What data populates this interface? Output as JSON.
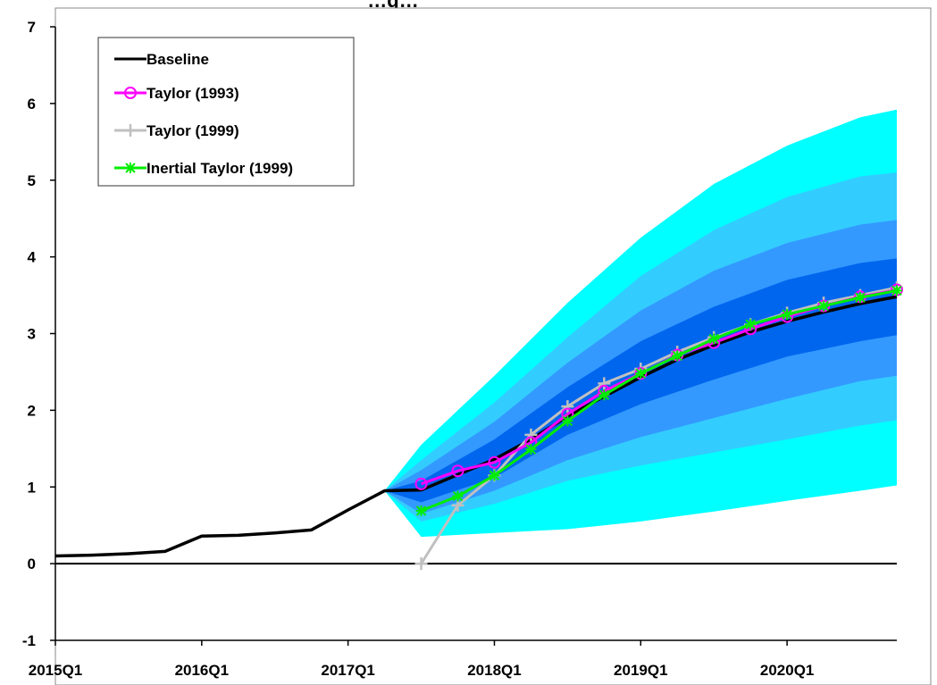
{
  "chart_data": {
    "type": "line",
    "title": "…g…",
    "x_tick_labels": [
      "2015Q1",
      "2016Q1",
      "2017Q1",
      "2018Q1",
      "2019Q1",
      "2020Q1"
    ],
    "x_tick_positions": [
      0,
      4,
      8,
      12,
      16,
      20
    ],
    "xlim": [
      0,
      23
    ],
    "ylim": [
      -1,
      7
    ],
    "y_ticks": [
      -1,
      0,
      1,
      2,
      3,
      4,
      5,
      6,
      7
    ],
    "legend_placement": "top-left",
    "fan_chart": {
      "x": [
        9,
        10,
        12,
        14,
        16,
        18,
        20,
        22,
        23
      ],
      "bands": [
        {
          "color": "#00ffff",
          "lower": [
            0.95,
            0.35,
            0.4,
            0.45,
            0.55,
            0.68,
            0.82,
            0.95,
            1.02
          ],
          "upper": [
            0.95,
            1.55,
            2.45,
            3.4,
            4.25,
            4.95,
            5.45,
            5.82,
            5.92
          ]
        },
        {
          "color": "#33ccff",
          "lower": [
            0.95,
            0.55,
            0.78,
            1.08,
            1.28,
            1.45,
            1.62,
            1.8,
            1.87
          ],
          "upper": [
            0.95,
            1.35,
            2.1,
            2.95,
            3.75,
            4.35,
            4.78,
            5.05,
            5.1
          ]
        },
        {
          "color": "#3399ff",
          "lower": [
            0.95,
            0.65,
            0.95,
            1.35,
            1.65,
            1.9,
            2.15,
            2.38,
            2.45
          ],
          "upper": [
            0.95,
            1.22,
            1.85,
            2.62,
            3.3,
            3.82,
            4.18,
            4.42,
            4.48
          ]
        },
        {
          "color": "#0066ee",
          "lower": [
            0.95,
            0.8,
            1.12,
            1.68,
            2.08,
            2.4,
            2.7,
            2.9,
            2.98
          ],
          "upper": [
            0.95,
            1.08,
            1.62,
            2.3,
            2.9,
            3.35,
            3.7,
            3.92,
            3.98
          ]
        }
      ]
    },
    "series": [
      {
        "name": "Baseline",
        "color": "#000000",
        "marker": "none",
        "x": [
          0,
          1,
          2,
          3,
          4,
          5,
          6,
          7,
          8,
          9,
          10,
          11,
          12,
          13,
          14,
          15,
          16,
          17,
          18,
          19,
          20,
          21,
          22,
          23
        ],
        "y": [
          0.1,
          0.11,
          0.13,
          0.16,
          0.36,
          0.37,
          0.4,
          0.44,
          0.7,
          0.95,
          0.96,
          1.16,
          1.36,
          1.62,
          1.92,
          2.18,
          2.43,
          2.66,
          2.85,
          3.02,
          3.16,
          3.28,
          3.39,
          3.48
        ]
      },
      {
        "name": "Taylor (1993)",
        "color": "#ff00ff",
        "marker": "circle",
        "x": [
          10,
          11,
          12,
          13,
          14,
          15,
          16,
          17,
          18,
          19,
          20,
          21,
          22,
          23
        ],
        "y": [
          1.04,
          1.21,
          1.32,
          1.58,
          1.95,
          2.25,
          2.48,
          2.72,
          2.88,
          3.06,
          3.22,
          3.36,
          3.48,
          3.57
        ]
      },
      {
        "name": "Taylor (1999)",
        "color": "#c0c0c0",
        "marker": "plus",
        "x": [
          10,
          11,
          12,
          13,
          14,
          15,
          16,
          17,
          18,
          19,
          20,
          21,
          22,
          23
        ],
        "y": [
          0.0,
          0.76,
          1.15,
          1.68,
          2.05,
          2.35,
          2.54,
          2.76,
          2.95,
          3.12,
          3.27,
          3.4,
          3.5,
          3.6
        ]
      },
      {
        "name": "Inertial Taylor (1999)",
        "color": "#00ee00",
        "marker": "star",
        "x": [
          10,
          11,
          12,
          13,
          14,
          15,
          16,
          17,
          18,
          19,
          20,
          21,
          22,
          23
        ],
        "y": [
          0.69,
          0.88,
          1.15,
          1.49,
          1.86,
          2.2,
          2.48,
          2.71,
          2.93,
          3.12,
          3.25,
          3.36,
          3.47,
          3.56
        ]
      }
    ]
  }
}
